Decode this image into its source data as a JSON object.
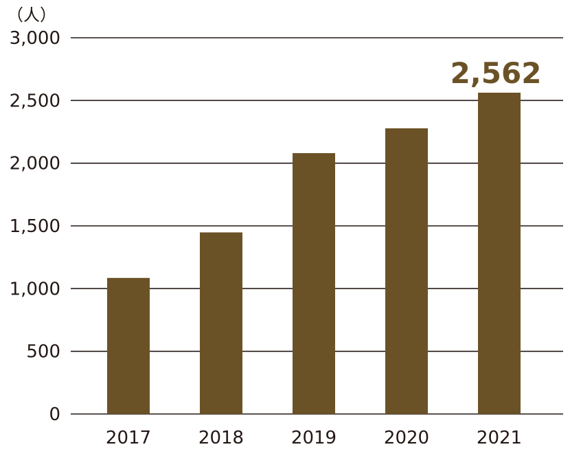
{
  "chart_data": {
    "type": "bar",
    "unit_label": "（人）",
    "categories": [
      "2017",
      "2018",
      "2019",
      "2020",
      "2021"
    ],
    "values": [
      1085,
      1448,
      2080,
      2278,
      2562
    ],
    "ylim": [
      0,
      3000
    ],
    "yticks": [
      0,
      500,
      1000,
      1500,
      2000,
      2500,
      3000
    ],
    "ytick_labels": [
      "0",
      "500",
      "1,000",
      "1,500",
      "2,000",
      "2,500",
      "3,000"
    ],
    "grid": true,
    "annotations": [
      {
        "category": "2021",
        "text": "2,562"
      }
    ],
    "colors": {
      "bar": "#6b5226",
      "label": "#6b5226",
      "grid": "#231815"
    }
  }
}
